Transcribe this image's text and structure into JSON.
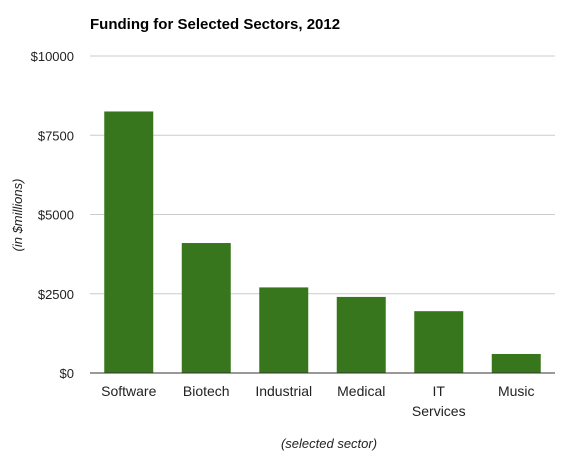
{
  "chart_data": {
    "type": "bar",
    "title": "Funding for Selected Sectors, 2012",
    "xlabel": "(selected sector)",
    "ylabel": "(in $millions)",
    "categories": [
      [
        "Software"
      ],
      [
        "Biotech"
      ],
      [
        "Industrial"
      ],
      [
        "Medical"
      ],
      [
        "IT",
        "Services"
      ],
      [
        "Music"
      ]
    ],
    "values": [
      8250,
      4100,
      2700,
      2400,
      1950,
      600
    ],
    "ylim": [
      0,
      10000
    ],
    "yticks": [
      0,
      2500,
      5000,
      7500,
      10000
    ],
    "ytick_labels": [
      "$0",
      "$2500",
      "$5000",
      "$7500",
      "$10000"
    ],
    "grid": true,
    "legend": "none",
    "colors": {
      "bar": "#38761d",
      "grid": "#cccccc",
      "axis": "#333333",
      "text": "#222222"
    }
  }
}
